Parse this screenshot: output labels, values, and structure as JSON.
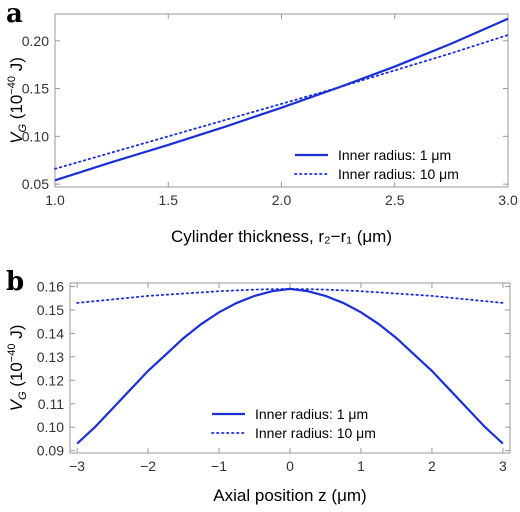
{
  "chart_data": [
    {
      "panel": "a",
      "type": "line",
      "xlabel": "Cylinder thickness, r₂−r₁ (μm)",
      "ylabel_base": "V",
      "ylabel_sub": "G",
      "ylabel_units_pre": "(10",
      "ylabel_units_exp": "−40",
      "ylabel_units_post": "J)",
      "xlim": [
        1.0,
        3.0
      ],
      "ylim": [
        0.047,
        0.228
      ],
      "xticks": [
        1.0,
        1.5,
        2.0,
        2.5,
        3.0
      ],
      "xtick_labels": [
        "1.0",
        "1.5",
        "2.0",
        "2.5",
        "3.0"
      ],
      "yticks": [
        0.05,
        0.1,
        0.15,
        0.2
      ],
      "ytick_labels": [
        "0.05",
        "0.10",
        "0.15",
        "0.20"
      ],
      "legend_position": "bottom-right",
      "series": [
        {
          "name": "Inner radius: 1 μm",
          "style": "solid",
          "color": "#1a2fd6",
          "x": [
            1.0,
            1.25,
            1.5,
            1.75,
            2.0,
            2.25,
            2.5,
            2.75,
            3.0
          ],
          "y": [
            0.054,
            0.073,
            0.091,
            0.11,
            0.13,
            0.151,
            0.173,
            0.197,
            0.223
          ]
        },
        {
          "name": "Inner radius: 10 μm",
          "style": "dotted",
          "color": "#1a2fd6",
          "x": [
            1.0,
            1.25,
            1.5,
            1.75,
            2.0,
            2.25,
            2.5,
            2.75,
            3.0
          ],
          "y": [
            0.066,
            0.083,
            0.1,
            0.117,
            0.134,
            0.151,
            0.169,
            0.187,
            0.206
          ]
        }
      ]
    },
    {
      "panel": "b",
      "type": "line",
      "xlabel": "Axial position z (μm)",
      "ylabel_base": "V",
      "ylabel_sub": "G",
      "ylabel_units_pre": "(10",
      "ylabel_units_exp": "−40",
      "ylabel_units_post": "J)",
      "xlim": [
        -3.1,
        3.1
      ],
      "ylim": [
        0.089,
        0.1615
      ],
      "xticks": [
        -3,
        -2,
        -1,
        0,
        1,
        2,
        3
      ],
      "xtick_labels": [
        "−3",
        "−2",
        "−1",
        "0",
        "1",
        "2",
        "3"
      ],
      "yticks": [
        0.09,
        0.1,
        0.11,
        0.12,
        0.13,
        0.14,
        0.15,
        0.16
      ],
      "ytick_labels": [
        "0.09",
        "0.10",
        "0.11",
        "0.12",
        "0.13",
        "0.14",
        "0.15",
        "0.16"
      ],
      "legend_position": "bottom-center",
      "series": [
        {
          "name": "Inner radius: 1 μm",
          "style": "solid",
          "color": "#1a2fd6",
          "x": [
            -3.0,
            -2.75,
            -2.5,
            -2.25,
            -2.0,
            -1.75,
            -1.5,
            -1.25,
            -1.0,
            -0.75,
            -0.5,
            -0.25,
            0.0,
            0.25,
            0.5,
            0.75,
            1.0,
            1.25,
            1.5,
            1.75,
            2.0,
            2.25,
            2.5,
            2.75,
            3.0
          ],
          "y": [
            0.093,
            0.1,
            0.108,
            0.116,
            0.124,
            0.131,
            0.138,
            0.144,
            0.149,
            0.153,
            0.156,
            0.158,
            0.159,
            0.158,
            0.156,
            0.153,
            0.149,
            0.144,
            0.138,
            0.131,
            0.124,
            0.116,
            0.108,
            0.1,
            0.093
          ]
        },
        {
          "name": "Inner radius: 10 μm",
          "style": "dotted",
          "color": "#1a2fd6",
          "x": [
            -3.0,
            -2.5,
            -2.0,
            -1.5,
            -1.0,
            -0.5,
            0.0,
            0.5,
            1.0,
            1.5,
            2.0,
            2.5,
            3.0
          ],
          "y": [
            0.153,
            0.1545,
            0.156,
            0.157,
            0.158,
            0.1587,
            0.159,
            0.1587,
            0.158,
            0.157,
            0.156,
            0.1545,
            0.153
          ]
        }
      ]
    }
  ]
}
